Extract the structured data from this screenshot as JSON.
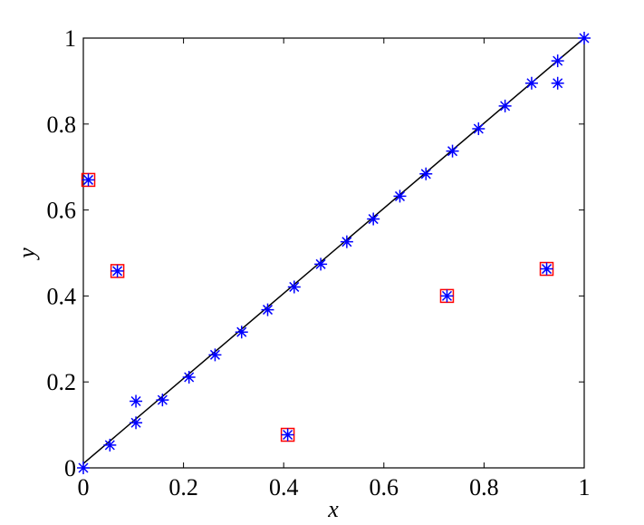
{
  "chart_data": {
    "type": "scatter",
    "title": "",
    "xlabel": "x",
    "ylabel": "y",
    "xlim": [
      0,
      1
    ],
    "ylim": [
      0,
      1
    ],
    "xticks": [
      "0",
      "0.2",
      "0.4",
      "0.6",
      "0.8",
      "1"
    ],
    "yticks": [
      "0",
      "0.2",
      "0.4",
      "0.6",
      "0.8",
      "1"
    ],
    "grid": false,
    "legend": "none",
    "line": {
      "x": [
        0,
        1
      ],
      "y": [
        0.01,
        1
      ],
      "color": "#000000"
    },
    "series": [
      {
        "marker": "asterisk",
        "color": "#0000ff",
        "points": [
          [
            0.0,
            0.0
          ],
          [
            0.053,
            0.053
          ],
          [
            0.105,
            0.105
          ],
          [
            0.105,
            0.155
          ],
          [
            0.158,
            0.158
          ],
          [
            0.211,
            0.211
          ],
          [
            0.263,
            0.263
          ],
          [
            0.316,
            0.316
          ],
          [
            0.368,
            0.368
          ],
          [
            0.421,
            0.421
          ],
          [
            0.474,
            0.474
          ],
          [
            0.526,
            0.526
          ],
          [
            0.579,
            0.579
          ],
          [
            0.632,
            0.632
          ],
          [
            0.684,
            0.684
          ],
          [
            0.737,
            0.737
          ],
          [
            0.789,
            0.789
          ],
          [
            0.842,
            0.842
          ],
          [
            0.895,
            0.895
          ],
          [
            0.947,
            0.947
          ],
          [
            0.947,
            0.895
          ],
          [
            1.0,
            1.0
          ],
          [
            0.01,
            0.67
          ],
          [
            0.068,
            0.458
          ],
          [
            0.408,
            0.077
          ],
          [
            0.726,
            0.4
          ],
          [
            0.925,
            0.463
          ]
        ]
      },
      {
        "marker": "square",
        "color": "#ff0000",
        "points": [
          [
            0.01,
            0.67
          ],
          [
            0.068,
            0.458
          ],
          [
            0.408,
            0.077
          ],
          [
            0.726,
            0.4
          ],
          [
            0.925,
            0.463
          ]
        ]
      }
    ]
  }
}
